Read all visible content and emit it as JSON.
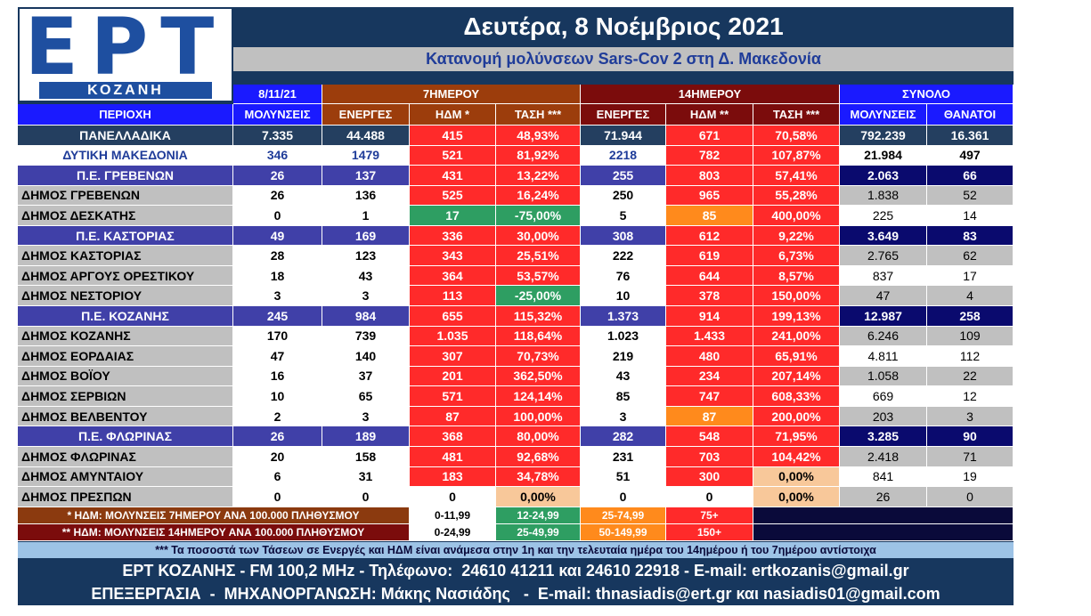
{
  "logo": {
    "brand": "ΕΡΤ",
    "city": "ΚΟΖΑΝΗ"
  },
  "title": "Δευτέρα, 8 Νοέμβριος 2021",
  "subtitle": "Κατανομή μολύνσεων Sars-Cov 2 στη Δ. Μακεδονία",
  "table": {
    "groups": [
      "8/11/21",
      "7ΗΜΕΡΟΥ",
      "14ΗΜΕΡΟΥ",
      "ΣΥΝΟΛΟ"
    ],
    "columns": [
      "ΠΕΡΙΟΧΗ",
      "ΜΟΛΥΝΣΕΙΣ",
      "ΕΝΕΡΓΕΣ",
      "ΗΔΜ *",
      "ΤΑΣΗ ***",
      "ΕΝΕΡΓΕΣ",
      "ΗΔΜ **",
      "ΤΑΣΗ ***",
      "ΜΟΛΥΝΣΕΙΣ",
      "ΘΑΝΑΤΟΙ"
    ],
    "rows": [
      [
        "ΠΑΝΕΛΛΑΔΙΚΑ",
        "7.335",
        "44.488",
        "415",
        "48,93%",
        "71.944",
        "671",
        "70,58%",
        "792.239",
        "16.361"
      ],
      [
        "ΔΥΤΙΚΗ ΜΑΚΕΔΟΝΙΑ",
        "346",
        "1479",
        "521",
        "81,92%",
        "2218",
        "782",
        "107,87%",
        "21.984",
        "497"
      ],
      [
        "Π.Ε. ΓΡΕΒΕΝΩΝ",
        "26",
        "137",
        "431",
        "13,22%",
        "255",
        "803",
        "57,41%",
        "2.063",
        "66"
      ],
      [
        "ΔΗΜΟΣ ΓΡΕΒΕΝΩΝ",
        "26",
        "136",
        "525",
        "16,24%",
        "250",
        "965",
        "55,28%",
        "1.838",
        "52"
      ],
      [
        "ΔΗΜΟΣ ΔΕΣΚΑΤΗΣ",
        "0",
        "1",
        "17",
        "-75,00%",
        "5",
        "85",
        "400,00%",
        "225",
        "14"
      ],
      [
        "Π.Ε. ΚΑΣΤΟΡΙΑΣ",
        "49",
        "169",
        "336",
        "30,00%",
        "308",
        "612",
        "9,22%",
        "3.649",
        "83"
      ],
      [
        "ΔΗΜΟΣ ΚΑΣΤΟΡΙΑΣ",
        "28",
        "123",
        "343",
        "25,51%",
        "222",
        "619",
        "6,73%",
        "2.765",
        "62"
      ],
      [
        "ΔΗΜΟΣ ΑΡΓΟΥΣ ΟΡΕΣΤΙΚΟΥ",
        "18",
        "43",
        "364",
        "53,57%",
        "76",
        "644",
        "8,57%",
        "837",
        "17"
      ],
      [
        "ΔΗΜΟΣ ΝΕΣΤΟΡΙΟΥ",
        "3",
        "3",
        "113",
        "-25,00%",
        "10",
        "378",
        "150,00%",
        "47",
        "4"
      ],
      [
        "Π.Ε. ΚΟΖΑΝΗΣ",
        "245",
        "984",
        "655",
        "115,32%",
        "1.373",
        "914",
        "199,13%",
        "12.987",
        "258"
      ],
      [
        "ΔΗΜΟΣ ΚΟΖΑΝΗΣ",
        "170",
        "739",
        "1.035",
        "118,64%",
        "1.023",
        "1.433",
        "241,00%",
        "6.246",
        "109"
      ],
      [
        "ΔΗΜΟΣ ΕΟΡΔΑΙΑΣ",
        "47",
        "140",
        "307",
        "70,73%",
        "219",
        "480",
        "65,91%",
        "4.811",
        "112"
      ],
      [
        "ΔΗΜΟΣ ΒΟΪΟΥ",
        "16",
        "37",
        "201",
        "362,50%",
        "43",
        "234",
        "207,14%",
        "1.058",
        "22"
      ],
      [
        "ΔΗΜΟΣ ΣΕΡΒΙΩΝ",
        "10",
        "65",
        "571",
        "124,14%",
        "85",
        "747",
        "608,33%",
        "669",
        "12"
      ],
      [
        "ΔΗΜΟΣ ΒΕΛΒΕΝΤΟΥ",
        "2",
        "3",
        "87",
        "100,00%",
        "3",
        "87",
        "200,00%",
        "203",
        "3"
      ],
      [
        "Π.Ε. ΦΛΩΡΙΝΑΣ",
        "26",
        "189",
        "368",
        "80,00%",
        "282",
        "548",
        "71,95%",
        "3.285",
        "90"
      ],
      [
        "ΔΗΜΟΣ ΦΛΩΡΙΝΑΣ",
        "20",
        "158",
        "481",
        "92,68%",
        "231",
        "703",
        "104,42%",
        "2.418",
        "71"
      ],
      [
        "ΔΗΜΟΣ ΑΜΥΝΤΑΙΟΥ",
        "6",
        "31",
        "183",
        "34,78%",
        "51",
        "300",
        "0,00%",
        "841",
        "19"
      ],
      [
        "ΔΗΜΟΣ ΠΡΕΣΠΩΝ",
        "0",
        "0",
        "0",
        "0,00%",
        "0",
        "0",
        "0,00%",
        "26",
        "0"
      ]
    ],
    "row_styles": [
      {
        "style": [
          "#243f60",
          "#fff",
          "#243f60",
          "#fff",
          "#243f60",
          "#fff"
        ],
        "marks": [
          "#ff2a2a",
          "#ff2a2a",
          "#ff2a2a",
          "#ff2a2a"
        ]
      },
      {
        "style": [
          "#fff",
          "#1f3c99",
          "#fff",
          "#1f3c99",
          "#fff",
          "#000"
        ],
        "marks": [
          "#ff2a2a",
          "#ff2a2a",
          "#ff2a2a",
          "#ff2a2a"
        ]
      },
      {
        "style": [
          "#4040a8",
          "#fff",
          "#4040a8",
          "#fff",
          "#0a0a6e",
          "#fff"
        ],
        "marks": [
          "#ff2a2a",
          "#ff2a2a",
          "#ff2a2a",
          "#ff2a2a"
        ]
      },
      {
        "style": [
          "#c0c0c0",
          "#000",
          "#fff",
          "#000",
          "#c0c0c0",
          "#000"
        ],
        "marks": [
          "#ff2a2a",
          "#ff2a2a",
          "#ff2a2a",
          "#ff2a2a"
        ]
      },
      {
        "style": [
          "#c0c0c0",
          "#000",
          "#fff",
          "#000",
          "#fff",
          "#000"
        ],
        "marks": [
          "#2e9e62",
          "#2e9e62",
          "#ff8a1c",
          "#ff2a2a"
        ]
      },
      {
        "style": [
          "#4040a8",
          "#fff",
          "#4040a8",
          "#fff",
          "#0a0a6e",
          "#fff"
        ],
        "marks": [
          "#ff2a2a",
          "#ff2a2a",
          "#ff2a2a",
          "#ff2a2a"
        ]
      },
      {
        "style": [
          "#c0c0c0",
          "#000",
          "#fff",
          "#000",
          "#c0c0c0",
          "#000"
        ],
        "marks": [
          "#ff2a2a",
          "#ff2a2a",
          "#ff2a2a",
          "#ff2a2a"
        ]
      },
      {
        "style": [
          "#c0c0c0",
          "#000",
          "#fff",
          "#000",
          "#fff",
          "#000"
        ],
        "marks": [
          "#ff2a2a",
          "#ff2a2a",
          "#ff2a2a",
          "#ff2a2a"
        ]
      },
      {
        "style": [
          "#c0c0c0",
          "#000",
          "#fff",
          "#000",
          "#c0c0c0",
          "#000"
        ],
        "marks": [
          "#ff2a2a",
          "#2e9e62",
          "#ff2a2a",
          "#ff2a2a"
        ]
      },
      {
        "style": [
          "#4040a8",
          "#fff",
          "#4040a8",
          "#fff",
          "#0a0a6e",
          "#fff"
        ],
        "marks": [
          "#ff2a2a",
          "#ff2a2a",
          "#ff2a2a",
          "#ff2a2a"
        ]
      },
      {
        "style": [
          "#c0c0c0",
          "#000",
          "#fff",
          "#000",
          "#c0c0c0",
          "#000"
        ],
        "marks": [
          "#ff2a2a",
          "#ff2a2a",
          "#ff2a2a",
          "#ff2a2a"
        ]
      },
      {
        "style": [
          "#c0c0c0",
          "#000",
          "#fff",
          "#000",
          "#fff",
          "#000"
        ],
        "marks": [
          "#ff2a2a",
          "#ff2a2a",
          "#ff2a2a",
          "#ff2a2a"
        ]
      },
      {
        "style": [
          "#c0c0c0",
          "#000",
          "#fff",
          "#000",
          "#c0c0c0",
          "#000"
        ],
        "marks": [
          "#ff2a2a",
          "#ff2a2a",
          "#ff2a2a",
          "#ff2a2a"
        ]
      },
      {
        "style": [
          "#c0c0c0",
          "#000",
          "#fff",
          "#000",
          "#fff",
          "#000"
        ],
        "marks": [
          "#ff2a2a",
          "#ff2a2a",
          "#ff2a2a",
          "#ff2a2a"
        ]
      },
      {
        "style": [
          "#c0c0c0",
          "#000",
          "#fff",
          "#000",
          "#c0c0c0",
          "#000"
        ],
        "marks": [
          "#ff2a2a",
          "#ff2a2a",
          "#ff8a1c",
          "#ff2a2a"
        ]
      },
      {
        "style": [
          "#4040a8",
          "#fff",
          "#4040a8",
          "#fff",
          "#0a0a6e",
          "#fff"
        ],
        "marks": [
          "#ff2a2a",
          "#ff2a2a",
          "#ff2a2a",
          "#ff2a2a"
        ]
      },
      {
        "style": [
          "#c0c0c0",
          "#000",
          "#fff",
          "#000",
          "#c0c0c0",
          "#000"
        ],
        "marks": [
          "#ff2a2a",
          "#ff2a2a",
          "#ff2a2a",
          "#ff2a2a"
        ]
      },
      {
        "style": [
          "#c0c0c0",
          "#000",
          "#fff",
          "#000",
          "#fff",
          "#000"
        ],
        "marks": [
          "#ff2a2a",
          "#ff2a2a",
          "#ff2a2a",
          "#f8c89a"
        ]
      },
      {
        "style": [
          "#c0c0c0",
          "#000",
          "#fff",
          "#000",
          "#c0c0c0",
          "#000"
        ],
        "marks": [
          "#fff",
          "#f8c89a",
          "#fff",
          "#f8c89a"
        ]
      }
    ]
  },
  "legend": [
    {
      "text": "* ΗΔΜ: ΜΟΛΥΝΣΕΙΣ 7ΗΜΕΡΟΥ ΑΝΑ 100.000 ΠΛΗΘΥΣΜΟΥ",
      "color": "#8b3a0f",
      "ranges": [
        "0-11,99",
        "12-24,99",
        "25-74,99",
        "75+"
      ]
    },
    {
      "text": "** ΗΔΜ: ΜΟΛΥΝΣΕΙΣ 14ΗΜΕΡΟΥ ΑΝΑ 100.000 ΠΛΗΘΥΣΜΟΥ",
      "color": "#7b0c0c",
      "ranges": [
        "0-24,99",
        "25-49,99",
        "50-149,99",
        "150+"
      ]
    }
  ],
  "range_colors": [
    "#fff",
    "#2e9e62",
    "#ff8a1c",
    "#ff2a2a"
  ],
  "note": "*** Τα ποσοστά των Τάσεων σε Ενεργές και ΗΔΜ είναι ανάμεσα στην 1η και την τελευταία ημέρα του 14ημέρου ή του 7ημέρου αντίστοιχα",
  "footer": [
    "ΕΡΤ ΚΟΖΑΝΗΣ - FM 100,2 MHz - Τηλέφωνο:  24610 41211 και 24610 22918 - E-mail: ertkozanis@gmail.gr",
    "ΕΠΕΞΕΡΓΑΣΙΑ  -  ΜΗΧΑΝΟΡΓΑΝΩΣΗ: Μάκης Νασιάδης   -  E-mail: thnasiadis@ert.gr και nasiadis01@gmail.com"
  ]
}
